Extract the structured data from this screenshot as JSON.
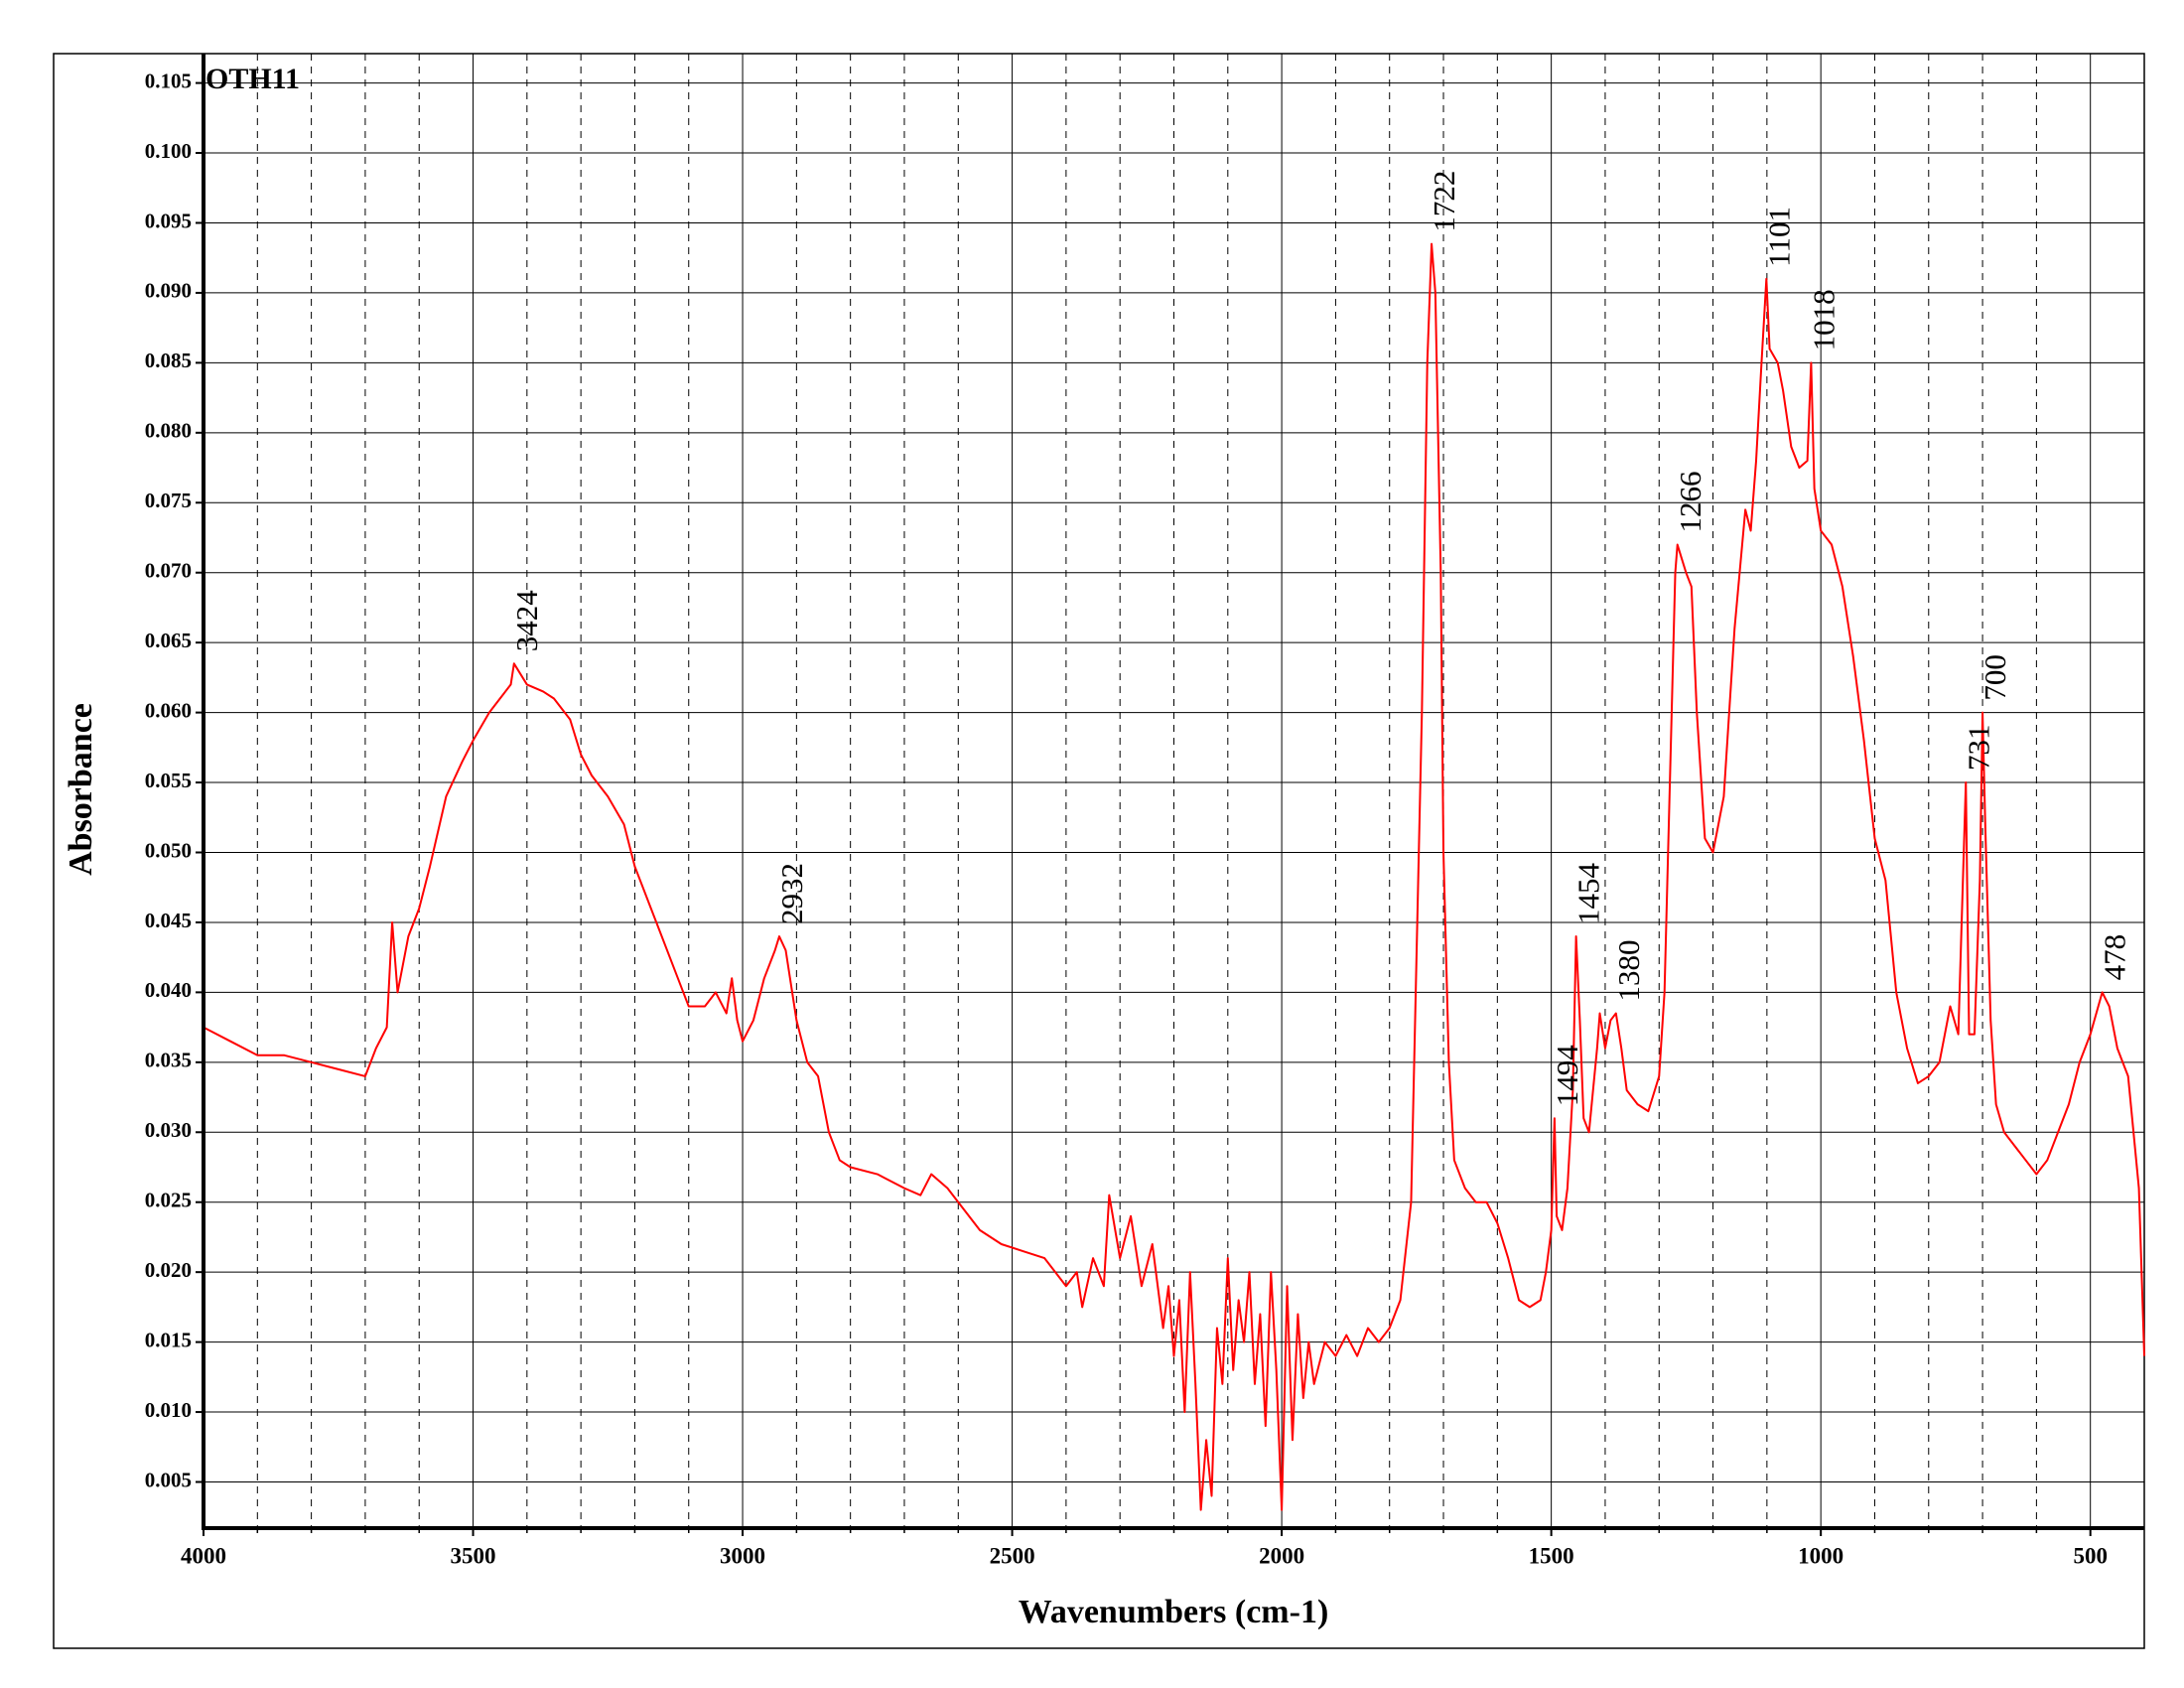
{
  "chart_data": {
    "type": "line",
    "x_label": "Wavenumbers (cm-1)",
    "y_label": "Absorbance",
    "xlim": [
      4000,
      400
    ],
    "ylim": [
      0.0017,
      0.1071
    ],
    "xticks": [
      4000,
      3500,
      3000,
      2500,
      2000,
      1500,
      1000,
      500
    ],
    "xminorticks": [
      3900,
      3800,
      3700,
      3600,
      3400,
      3300,
      3200,
      3100,
      2900,
      2800,
      2700,
      2600,
      2400,
      2300,
      2200,
      2100,
      1900,
      1800,
      1700,
      1600,
      1400,
      1300,
      1200,
      1100,
      900,
      800,
      700,
      600
    ],
    "yticks": [
      0.005,
      {
        "value": 0.01,
        "label": "0.010"
      },
      0.015,
      {
        "value": 0.02,
        "label": "0.020"
      },
      0.025,
      {
        "value": 0.03,
        "label": "0.030"
      },
      0.035,
      {
        "value": 0.04,
        "label": "0.040"
      },
      0.045,
      {
        "value": 0.05,
        "label": "0.050"
      },
      0.055,
      {
        "value": 0.06,
        "label": "0.060"
      },
      0.065,
      {
        "value": 0.07,
        "label": "0.070"
      },
      0.075,
      {
        "value": 0.08,
        "label": "0.080"
      },
      0.085,
      {
        "value": 0.09,
        "label": "0.090"
      },
      0.095,
      {
        "value": 0.1,
        "label": "0.100"
      },
      0.105
    ],
    "grid": true,
    "x": [
      4000,
      3950,
      3900,
      3850,
      3800,
      3750,
      3700,
      3680,
      3660,
      3650,
      3640,
      3620,
      3600,
      3580,
      3550,
      3520,
      3500,
      3470,
      3450,
      3430,
      3424,
      3400,
      3370,
      3350,
      3320,
      3300,
      3280,
      3250,
      3220,
      3200,
      3170,
      3150,
      3120,
      3100,
      3070,
      3050,
      3030,
      3020,
      3010,
      3000,
      2980,
      2960,
      2940,
      2932,
      2920,
      2900,
      2880,
      2860,
      2840,
      2820,
      2800,
      2750,
      2700,
      2670,
      2650,
      2620,
      2600,
      2560,
      2520,
      2480,
      2440,
      2400,
      2380,
      2370,
      2350,
      2330,
      2320,
      2300,
      2280,
      2260,
      2240,
      2220,
      2210,
      2200,
      2190,
      2180,
      2170,
      2160,
      2150,
      2140,
      2130,
      2120,
      2110,
      2100,
      2090,
      2080,
      2070,
      2060,
      2050,
      2040,
      2030,
      2020,
      2010,
      2000,
      1990,
      1980,
      1970,
      1960,
      1950,
      1940,
      1920,
      1900,
      1880,
      1860,
      1840,
      1820,
      1800,
      1780,
      1760,
      1740,
      1730,
      1722,
      1715,
      1705,
      1700,
      1690,
      1680,
      1660,
      1640,
      1620,
      1600,
      1580,
      1560,
      1540,
      1520,
      1510,
      1500,
      1494,
      1490,
      1480,
      1470,
      1460,
      1454,
      1447,
      1440,
      1430,
      1415,
      1410,
      1400,
      1390,
      1380,
      1370,
      1360,
      1340,
      1320,
      1300,
      1290,
      1280,
      1270,
      1266,
      1250,
      1240,
      1230,
      1215,
      1200,
      1180,
      1160,
      1140,
      1130,
      1120,
      1110,
      1101,
      1095,
      1080,
      1070,
      1055,
      1040,
      1025,
      1018,
      1012,
      1000,
      980,
      960,
      940,
      920,
      900,
      880,
      860,
      840,
      820,
      800,
      780,
      760,
      745,
      731,
      725,
      715,
      705,
      700,
      695,
      685,
      675,
      660,
      640,
      620,
      600,
      580,
      560,
      540,
      520,
      500,
      478,
      465,
      450,
      440,
      430,
      420,
      410,
      405,
      400
    ],
    "series": [
      {
        "name": "OTH11",
        "color": "#ff0000",
        "values": [
          0.0375,
          0.0365,
          0.0355,
          0.0355,
          0.035,
          0.0345,
          0.034,
          0.036,
          0.0375,
          0.045,
          0.04,
          0.044,
          0.046,
          0.049,
          0.054,
          0.0565,
          0.058,
          0.06,
          0.061,
          0.062,
          0.0635,
          0.062,
          0.0615,
          0.061,
          0.0595,
          0.057,
          0.0555,
          0.054,
          0.052,
          0.049,
          0.046,
          0.044,
          0.041,
          0.039,
          0.039,
          0.04,
          0.0385,
          0.041,
          0.038,
          0.0365,
          0.038,
          0.041,
          0.043,
          0.044,
          0.043,
          0.038,
          0.035,
          0.034,
          0.03,
          0.028,
          0.0275,
          0.027,
          0.026,
          0.0255,
          0.027,
          0.026,
          0.025,
          0.023,
          0.022,
          0.0215,
          0.021,
          0.019,
          0.02,
          0.0175,
          0.021,
          0.019,
          0.0255,
          0.021,
          0.024,
          0.019,
          0.022,
          0.016,
          0.019,
          0.014,
          0.018,
          0.01,
          0.02,
          0.012,
          0.003,
          0.008,
          0.004,
          0.016,
          0.012,
          0.021,
          0.013,
          0.018,
          0.015,
          0.02,
          0.012,
          0.017,
          0.009,
          0.02,
          0.013,
          0.003,
          0.019,
          0.008,
          0.017,
          0.011,
          0.015,
          0.012,
          0.015,
          0.014,
          0.0155,
          0.014,
          0.016,
          0.015,
          0.016,
          0.018,
          0.025,
          0.06,
          0.085,
          0.0935,
          0.09,
          0.07,
          0.05,
          0.035,
          0.028,
          0.026,
          0.025,
          0.025,
          0.0235,
          0.021,
          0.018,
          0.0175,
          0.018,
          0.02,
          0.023,
          0.031,
          0.024,
          0.023,
          0.026,
          0.033,
          0.044,
          0.038,
          0.031,
          0.03,
          0.036,
          0.0385,
          0.036,
          0.038,
          0.0385,
          0.036,
          0.033,
          0.032,
          0.0315,
          0.034,
          0.04,
          0.055,
          0.07,
          0.072,
          0.07,
          0.069,
          0.06,
          0.051,
          0.05,
          0.054,
          0.066,
          0.0745,
          0.073,
          0.078,
          0.085,
          0.091,
          0.086,
          0.085,
          0.083,
          0.079,
          0.0775,
          0.078,
          0.085,
          0.076,
          0.073,
          0.072,
          0.069,
          0.064,
          0.058,
          0.051,
          0.048,
          0.04,
          0.036,
          0.0335,
          0.034,
          0.035,
          0.039,
          0.037,
          0.055,
          0.037,
          0.037,
          0.048,
          0.06,
          0.052,
          0.038,
          0.032,
          0.03,
          0.029,
          0.028,
          0.027,
          0.028,
          0.03,
          0.032,
          0.035,
          0.037,
          0.04,
          0.039,
          0.036,
          0.035,
          0.034,
          0.03,
          0.026,
          0.02,
          0.014
        ]
      }
    ],
    "peak_labels": [
      3424,
      2932,
      1722,
      1494,
      1454,
      1380,
      1266,
      1101,
      1018,
      731,
      700,
      478
    ]
  }
}
